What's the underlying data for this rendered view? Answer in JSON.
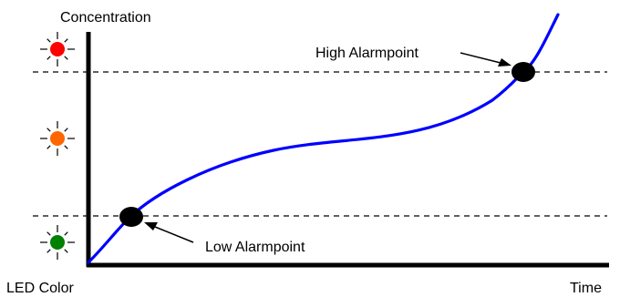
{
  "labels": {
    "y_axis": "Concentration",
    "x_axis": "Time",
    "led_axis": "LED Color",
    "high_alarm": "High Alarmpoint",
    "low_alarm": "Low Alarmpoint"
  },
  "led_indicators": [
    {
      "name": "red-led-icon",
      "color": "#ff0000"
    },
    {
      "name": "orange-led-icon",
      "color": "#ff6600"
    },
    {
      "name": "green-led-icon",
      "color": "#008000"
    }
  ],
  "colors": {
    "curve": "#0000ff",
    "axes": "#000000",
    "threshold_lines": "#000000",
    "alarm_markers": "#000000"
  }
}
